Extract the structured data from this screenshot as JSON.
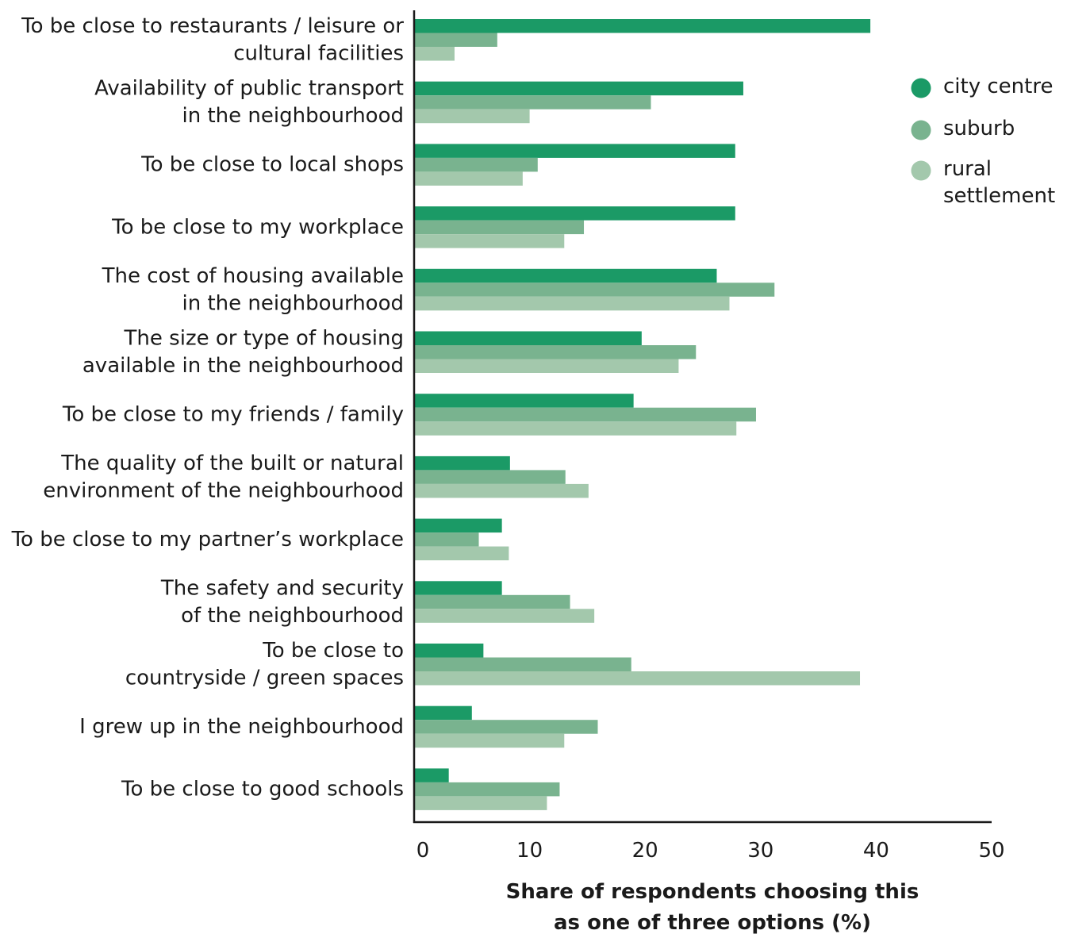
{
  "chart_data": {
    "type": "bar",
    "orientation": "horizontal",
    "categories": [
      [
        "To be close to restaurants / leisure or",
        "cultural facilities"
      ],
      [
        "Availability of public transport",
        "in the neighbourhood"
      ],
      [
        "To be close to local shops"
      ],
      [
        "To be close to my workplace"
      ],
      [
        "The cost of housing available",
        "in the neighbourhood"
      ],
      [
        "The size or type of housing",
        "available in the neighbourhood"
      ],
      [
        "To be close to my friends / family"
      ],
      [
        "The quality of the built or natural",
        "environment of the neighbourhood"
      ],
      [
        "To be close to my partner’s workplace"
      ],
      [
        "The safety and security",
        "of the neighbourhood"
      ],
      [
        "To be close to",
        "countryside / green spaces"
      ],
      [
        "I grew up in the neighbourhood"
      ],
      [
        "To be close to good schools"
      ]
    ],
    "series": [
      {
        "name": "city centre",
        "color": "#1b9a66",
        "values": [
          39.5,
          28.5,
          27.8,
          27.8,
          26.2,
          19.7,
          19.0,
          8.3,
          7.6,
          7.6,
          6.0,
          5.0,
          3.0
        ]
      },
      {
        "name": "suburb",
        "color": "#79b38f",
        "values": [
          7.2,
          20.5,
          10.7,
          14.7,
          31.2,
          24.4,
          29.6,
          13.1,
          5.6,
          13.5,
          18.8,
          15.9,
          12.6
        ]
      },
      {
        "name": "rural settlement",
        "color": "#a3c8ac",
        "values": [
          3.5,
          10.0,
          9.4,
          13.0,
          27.3,
          22.9,
          27.9,
          15.1,
          8.2,
          15.6,
          38.6,
          13.0,
          11.5
        ]
      }
    ],
    "legend": {
      "position": "top-right",
      "entries": [
        [
          "city centre"
        ],
        [
          "suburb"
        ],
        [
          "rural",
          "settlement"
        ]
      ]
    },
    "xlim": [
      0,
      50
    ],
    "xticks": [
      "0",
      "10",
      "20",
      "30",
      "40",
      "50"
    ],
    "xlabel": [
      "Share of respondents choosing this",
      "as one of three options (%)"
    ],
    "ylabel": "",
    "grid": false
  }
}
